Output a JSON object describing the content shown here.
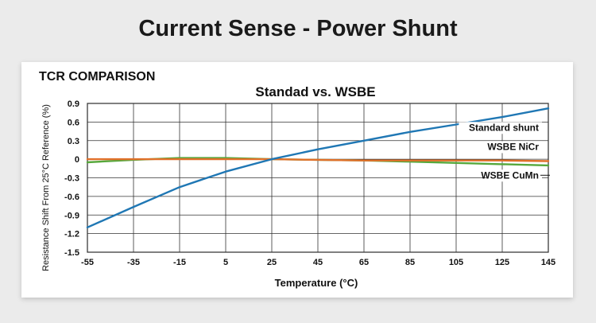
{
  "page_title": "Current Sense - Power Shunt",
  "panel_title": "TCR COMPARISON",
  "chart_data": {
    "type": "line",
    "title": "Standad vs. WSBE",
    "xlabel": "Temperature (°C)",
    "ylabel": "Resistance Shift From 25°C Reference (%)",
    "xlim": [
      -55,
      145
    ],
    "ylim": [
      -1.5,
      0.9
    ],
    "x_ticks": [
      -55,
      -35,
      -15,
      5,
      25,
      45,
      65,
      85,
      105,
      125,
      145
    ],
    "y_ticks": [
      0.9,
      0.6,
      0.3,
      0,
      -0.3,
      -0.6,
      -0.9,
      -1.2,
      -1.5
    ],
    "y_tick_labels": [
      "0.9",
      "0.6",
      "0.3",
      "0",
      "-0.3",
      "-0.6",
      "-0.9",
      "-1.2",
      "-1.5"
    ],
    "grid": true,
    "series": [
      {
        "name": "Standard shunt",
        "color": "#1f77b4",
        "x": [
          -55,
          -35,
          -15,
          5,
          25,
          45,
          65,
          85,
          105,
          125,
          145
        ],
        "y": [
          -1.1,
          -0.77,
          -0.45,
          -0.2,
          0.0,
          0.16,
          0.3,
          0.44,
          0.56,
          0.68,
          0.82
        ]
      },
      {
        "name": "WSBE NiCr",
        "color": "#e0702a",
        "x": [
          -55,
          -35,
          -15,
          5,
          25,
          45,
          65,
          85,
          105,
          125,
          145
        ],
        "y": [
          0.0,
          0.0,
          0.0,
          0.0,
          0.0,
          -0.01,
          -0.02,
          -0.02,
          -0.02,
          -0.02,
          -0.03
        ]
      },
      {
        "name": "WSBE CuMn",
        "color": "#56a83c",
        "x": [
          -55,
          -35,
          -15,
          5,
          25,
          45,
          65,
          85,
          105,
          125,
          145
        ],
        "y": [
          -0.05,
          -0.01,
          0.02,
          0.02,
          0.0,
          -0.01,
          -0.02,
          -0.04,
          -0.06,
          -0.08,
          -0.1
        ]
      }
    ],
    "annotations": [
      "Standard shunt",
      "WSBE NiCr",
      "WSBE CuMn"
    ]
  }
}
